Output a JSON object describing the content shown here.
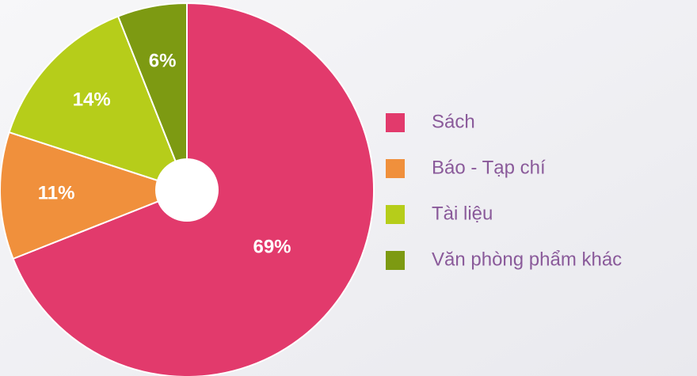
{
  "chart_data": {
    "type": "pie",
    "categories": [
      "Sách",
      "Báo - Tạp chí",
      "Tài liệu",
      "Văn phòng phẩm khác"
    ],
    "values": [
      69,
      11,
      14,
      6
    ],
    "value_labels": [
      "69%",
      "11%",
      "14%",
      "6%"
    ],
    "colors": [
      "#e23a6c",
      "#f0903c",
      "#b6cd1a",
      "#7d9a12"
    ],
    "legend": "right"
  }
}
